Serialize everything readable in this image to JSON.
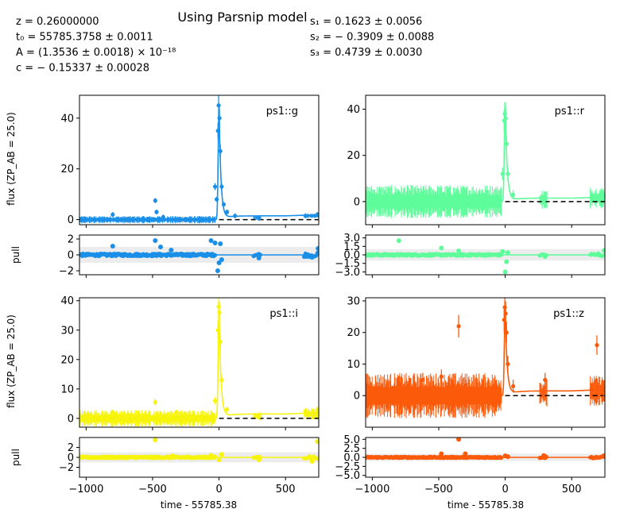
{
  "title": "Using Parsnip model",
  "params_left": [
    "z = 0.26000000",
    "t₀ = 55785.3758 ± 0.0011",
    "A = (1.3536 ± 0.0018) × 10⁻¹⁸",
    "c = − 0.15337 ± 0.00028"
  ],
  "params_right": [
    "s₁ = 0.1623 ± 0.0056",
    "s₂ = − 0.3909 ± 0.0088",
    "s₃ = 0.4739 ± 0.0030"
  ],
  "ylabel_flux": "flux (ZP_AB = 25.0)",
  "ylabel_pull": "pull",
  "xlabel": "time - 55785.38",
  "chart_data": [
    {
      "type": "scatter",
      "band": "ps1::g",
      "color": "#1a8fe8",
      "xlim": [
        -1050,
        750
      ],
      "flux_ylim": [
        -2,
        49
      ],
      "flux_yticks": [
        0,
        20,
        40
      ],
      "pull_ylim": [
        -2.5,
        2.5
      ],
      "pull_yticks": [
        -2,
        0,
        2
      ],
      "pull_ytick_labels": [
        "−2",
        "0",
        "2"
      ],
      "noise_level": 0.6,
      "peak": 45,
      "tail": 1.5,
      "model_baseline": 0,
      "points": [
        [
          -800,
          2.0
        ],
        [
          -480,
          7.5
        ],
        [
          -470,
          3.0
        ],
        [
          -420,
          1.0
        ],
        [
          -30,
          13
        ],
        [
          -18,
          8
        ],
        [
          -8,
          35
        ],
        [
          -3,
          45
        ],
        [
          3,
          40
        ],
        [
          10,
          27
        ],
        [
          20,
          13
        ],
        [
          35,
          6
        ],
        [
          60,
          3
        ],
        [
          120,
          1.5
        ],
        [
          300,
          0.5
        ],
        [
          650,
          1.5
        ],
        [
          740,
          2.0
        ]
      ],
      "pull_points": [
        [
          -800,
          1.1
        ],
        [
          -480,
          1.8
        ],
        [
          -440,
          1.0
        ],
        [
          -360,
          0.6
        ],
        [
          -60,
          1.8
        ],
        [
          -30,
          1.5
        ],
        [
          -10,
          -2.0
        ],
        [
          0,
          -1.0
        ],
        [
          10,
          1.4
        ],
        [
          20,
          -0.6
        ],
        [
          300,
          -0.4
        ],
        [
          700,
          -0.3
        ],
        [
          745,
          0.8
        ]
      ]
    },
    {
      "type": "scatter",
      "band": "ps1::r",
      "color": "#5efc9a",
      "xlim": [
        -1050,
        750
      ],
      "flux_ylim": [
        -10,
        46
      ],
      "flux_yticks": [
        0,
        20,
        40
      ],
      "pull_ylim": [
        -3.5,
        3.5
      ],
      "pull_yticks": [
        -3.0,
        -1.5,
        0.0,
        1.5,
        3.0
      ],
      "pull_ytick_labels": [
        "−3.0",
        "−1.5",
        "0.0",
        "1.5",
        "3.0"
      ],
      "noise_level": 3.0,
      "peak": 43,
      "tail": 1.5,
      "model_baseline": 0,
      "points": [
        [
          -800,
          3.0
        ],
        [
          -480,
          2.0
        ],
        [
          -350,
          2.5
        ],
        [
          -20,
          12
        ],
        [
          -8,
          35
        ],
        [
          -3,
          38
        ],
        [
          3,
          36
        ],
        [
          10,
          25
        ],
        [
          20,
          12
        ],
        [
          60,
          3
        ],
        [
          300,
          1.0
        ],
        [
          650,
          2.0
        ],
        [
          740,
          3.0
        ]
      ],
      "pull_points": [
        [
          -800,
          2.5
        ],
        [
          -480,
          1.2
        ],
        [
          -350,
          0.7
        ],
        [
          -20,
          0.6
        ],
        [
          0,
          -3.0
        ],
        [
          10,
          -1.2
        ],
        [
          20,
          0.4
        ],
        [
          300,
          -0.3
        ],
        [
          700,
          0.2
        ],
        [
          745,
          0.8
        ]
      ]
    },
    {
      "type": "scatter",
      "band": "ps1::i",
      "color": "#f7f40d",
      "xlim": [
        -1050,
        750
      ],
      "flux_ylim": [
        -3,
        41
      ],
      "flux_yticks": [
        0,
        10,
        20,
        30,
        40
      ],
      "pull_ylim": [
        -4,
        4
      ],
      "pull_yticks": [
        -2,
        0,
        2
      ],
      "pull_ytick_labels": [
        "−2",
        "0",
        "2"
      ],
      "noise_level": 1.2,
      "peak": 38,
      "tail": 1.5,
      "model_baseline": 0,
      "points": [
        [
          -800,
          2.0
        ],
        [
          -480,
          5.5
        ],
        [
          -320,
          2.0
        ],
        [
          -30,
          6
        ],
        [
          -8,
          30
        ],
        [
          -3,
          38
        ],
        [
          3,
          36
        ],
        [
          10,
          26
        ],
        [
          20,
          13
        ],
        [
          60,
          3
        ],
        [
          300,
          0.5
        ],
        [
          650,
          2.5
        ],
        [
          740,
          3.0
        ]
      ],
      "pull_points": [
        [
          -480,
          3.5
        ],
        [
          -350,
          0.3
        ],
        [
          -60,
          0.4
        ],
        [
          0,
          -0.5
        ],
        [
          20,
          0.6
        ],
        [
          300,
          -0.5
        ],
        [
          700,
          -0.8
        ],
        [
          740,
          3.2
        ]
      ]
    },
    {
      "type": "scatter",
      "band": "ps1::z",
      "color": "#fb5a0a",
      "xlim": [
        -1050,
        750
      ],
      "flux_ylim": [
        -10,
        31
      ],
      "flux_yticks": [
        0,
        10,
        20,
        30
      ],
      "pull_ylim": [
        -5.5,
        5.5
      ],
      "pull_yticks": [
        -5.0,
        -2.5,
        0.0,
        2.5,
        5.0
      ],
      "pull_ytick_labels": [
        "−5.0",
        "−2.5",
        "0.0",
        "2.5",
        "5.0"
      ],
      "noise_level": 3.0,
      "peak": 28,
      "tail": 1.5,
      "model_baseline": 0,
      "points": [
        [
          -800,
          4.0
        ],
        [
          -620,
          5.0
        ],
        [
          -480,
          6.0
        ],
        [
          -350,
          22
        ],
        [
          -8,
          24
        ],
        [
          -3,
          28
        ],
        [
          3,
          26
        ],
        [
          10,
          20
        ],
        [
          20,
          10
        ],
        [
          60,
          3
        ],
        [
          290,
          1.0
        ],
        [
          300,
          5.0
        ],
        [
          650,
          2.0
        ],
        [
          690,
          16
        ],
        [
          740,
          1.0
        ]
      ],
      "pull_points": [
        [
          -480,
          1.0
        ],
        [
          -350,
          5.0
        ],
        [
          -300,
          1.0
        ],
        [
          0,
          0.4
        ],
        [
          20,
          0.2
        ],
        [
          290,
          0.5
        ],
        [
          300,
          0.3
        ],
        [
          690,
          0.0
        ],
        [
          745,
          0.5
        ]
      ]
    }
  ]
}
